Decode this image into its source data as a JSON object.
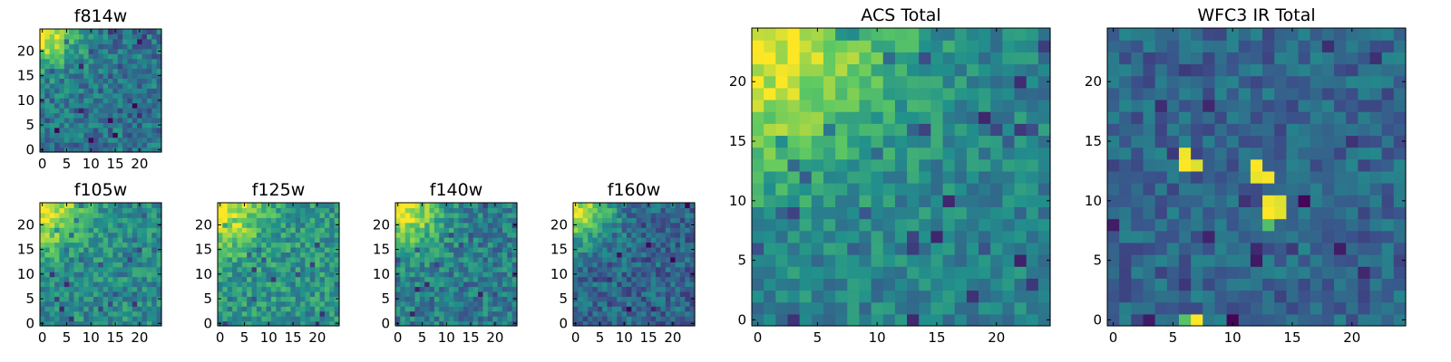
{
  "colormap": [
    "#440154",
    "#3b528b",
    "#21918c",
    "#5ec962",
    "#fde725"
  ],
  "chart_data": [
    {
      "type": "heatmap",
      "title": "f814w",
      "grid_size": [
        25,
        25
      ],
      "xlim": [
        0,
        24
      ],
      "ylim": [
        0,
        24
      ],
      "xticks": [
        "0",
        "5",
        "10",
        "15",
        "20"
      ],
      "yticks": [
        "0",
        "5",
        "10",
        "15",
        "20"
      ],
      "tick_values": [
        0,
        5,
        10,
        15,
        20
      ],
      "grid": false,
      "pattern": "bright-top-left-corner with mottled noise",
      "seed": 11,
      "peak": 1.0,
      "radius": 5,
      "base": 0.38,
      "noise": 0.17,
      "spikes": [],
      "ticks_major_only": true
    },
    {
      "type": "heatmap",
      "title": "f105w",
      "grid_size": [
        25,
        25
      ],
      "xlim": [
        0,
        24
      ],
      "ylim": [
        0,
        24
      ],
      "xticks": [
        "0",
        "5",
        "10",
        "15",
        "20"
      ],
      "yticks": [
        "0",
        "5",
        "10",
        "15",
        "20"
      ],
      "tick_values": [
        0,
        5,
        10,
        15,
        20
      ],
      "grid": false,
      "pattern": "bright-top-left-corner with mottled noise",
      "seed": 23,
      "peak": 1.0,
      "radius": 6,
      "base": 0.48,
      "noise": 0.16,
      "spikes": []
    },
    {
      "type": "heatmap",
      "title": "f125w",
      "grid_size": [
        25,
        25
      ],
      "xlim": [
        0,
        24
      ],
      "ylim": [
        0,
        24
      ],
      "xticks": [
        "0",
        "5",
        "10",
        "15",
        "20"
      ],
      "yticks": [
        "0",
        "5",
        "10",
        "15",
        "20"
      ],
      "tick_values": [
        0,
        5,
        10,
        15,
        20
      ],
      "grid": false,
      "pattern": "bright-top-left-corner with mottled noise",
      "seed": 37,
      "peak": 1.0,
      "radius": 6,
      "base": 0.52,
      "noise": 0.17,
      "spikes": []
    },
    {
      "type": "heatmap",
      "title": "f140w",
      "grid_size": [
        25,
        25
      ],
      "xlim": [
        0,
        24
      ],
      "ylim": [
        0,
        24
      ],
      "xticks": [
        "0",
        "5",
        "10",
        "15",
        "20"
      ],
      "yticks": [
        "0",
        "5",
        "10",
        "15",
        "20"
      ],
      "tick_values": [
        0,
        5,
        10,
        15,
        20
      ],
      "grid": false,
      "pattern": "bright-top-left-corner with mottled noise",
      "seed": 41,
      "peak": 1.0,
      "radius": 6,
      "base": 0.42,
      "noise": 0.17,
      "spikes": []
    },
    {
      "type": "heatmap",
      "title": "f160w",
      "grid_size": [
        25,
        25
      ],
      "xlim": [
        0,
        24
      ],
      "ylim": [
        0,
        24
      ],
      "xticks": [
        "0",
        "5",
        "10",
        "15",
        "20"
      ],
      "yticks": [
        "0",
        "5",
        "10",
        "15",
        "20"
      ],
      "tick_values": [
        0,
        5,
        10,
        15,
        20
      ],
      "grid": false,
      "pattern": "bright-top-left-corner with mottled noise",
      "seed": 53,
      "peak": 1.0,
      "radius": 5,
      "base": 0.33,
      "noise": 0.16,
      "spikes": []
    },
    {
      "type": "heatmap",
      "title": "ACS Total",
      "grid_size": [
        25,
        25
      ],
      "xlim": [
        0,
        24
      ],
      "ylim": [
        0,
        24
      ],
      "xticks": [
        "0",
        "5",
        "10",
        "15",
        "20"
      ],
      "yticks": [
        "0",
        "5",
        "10",
        "15",
        "20"
      ],
      "tick_values": [
        0,
        5,
        10,
        15,
        20
      ],
      "grid": false,
      "pattern": "bright-top-left-corner with mottled noise",
      "seed": 67,
      "peak": 1.0,
      "radius": 8,
      "base": 0.44,
      "noise": 0.13,
      "spikes": []
    },
    {
      "type": "heatmap",
      "title": "WFC3 IR Total",
      "grid_size": [
        25,
        25
      ],
      "xlim": [
        0,
        24
      ],
      "ylim": [
        0,
        24
      ],
      "xticks": [
        "0",
        "5",
        "10",
        "15",
        "20"
      ],
      "yticks": [
        "0",
        "5",
        "10",
        "15",
        "20"
      ],
      "tick_values": [
        0,
        5,
        10,
        15,
        20
      ],
      "grid": false,
      "pattern": "mostly dark noise with isolated bright pixels",
      "seed": 79,
      "peak": 0.0,
      "radius": 1,
      "base": 0.33,
      "noise": 0.13,
      "spikes": [
        [
          6,
          13,
          1.0
        ],
        [
          7,
          13,
          0.95
        ],
        [
          6,
          14,
          0.98
        ],
        [
          12,
          13,
          1.0
        ],
        [
          12,
          12,
          0.97
        ],
        [
          13,
          12,
          0.99
        ],
        [
          13,
          9,
          1.0
        ],
        [
          14,
          9,
          0.96
        ],
        [
          13,
          10,
          0.98
        ],
        [
          14,
          10,
          0.95
        ],
        [
          13,
          8,
          0.7
        ],
        [
          6,
          0,
          0.72
        ],
        [
          7,
          0,
          1.0
        ]
      ]
    }
  ]
}
